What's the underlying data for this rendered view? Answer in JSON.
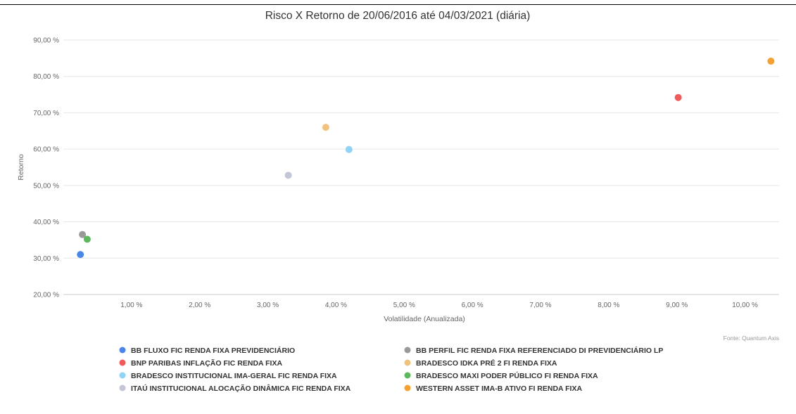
{
  "chart_data": {
    "type": "scatter",
    "title": "Risco X Retorno de 20/06/2016 até 04/03/2021 (diária)",
    "xlabel": "Volatilidade (Anualizada)",
    "ylabel": "Retorno",
    "xlim": [
      0.0,
      10.5
    ],
    "ylim": [
      20,
      90
    ],
    "x_ticks": [
      1,
      2,
      3,
      4,
      5,
      6,
      7,
      8,
      9,
      10
    ],
    "x_tick_labels": [
      "1,00 %",
      "2,00 %",
      "3,00 %",
      "4,00 %",
      "5,00 %",
      "6,00 %",
      "7,00 %",
      "8,00 %",
      "9,00 %",
      "10,00 %"
    ],
    "y_ticks": [
      20,
      30,
      40,
      50,
      60,
      70,
      80,
      90
    ],
    "y_tick_labels": [
      "20,00 %",
      "30,00 %",
      "40,00 %",
      "50,00 %",
      "60,00 %",
      "70,00 %",
      "80,00 %",
      "90,00 %"
    ],
    "grid": "horizontal",
    "legend_position": "bottom",
    "source": "Fonte: Quantum Axis",
    "series": [
      {
        "name": "BB FLUXO FIC RENDA FIXA PREVIDENCIÁRIO",
        "color": "#4a86e8",
        "x": 0.25,
        "y": 31.0
      },
      {
        "name": "BB PERFIL FIC RENDA FIXA REFERENCIADO DI PREVIDENCIÁRIO LP",
        "color": "#999999",
        "x": 0.28,
        "y": 36.5
      },
      {
        "name": "BNP PARIBAS INFLAÇÃO FIC RENDA FIXA",
        "color": "#f05a5a",
        "x": 9.02,
        "y": 74.2
      },
      {
        "name": "BRADESCO IDKA PRÉ 2 FI RENDA FIXA",
        "color": "#f1c27d",
        "x": 3.85,
        "y": 66.0
      },
      {
        "name": "BRADESCO INSTITUCIONAL IMA-GERAL FIC RENDA FIXA",
        "color": "#8fd3f5",
        "x": 4.19,
        "y": 59.9
      },
      {
        "name": "BRADESCO MAXI PODER PÚBLICO FI RENDA FIXA",
        "color": "#5cb85c",
        "x": 0.35,
        "y": 35.2
      },
      {
        "name": "ITAÚ INSTITUCIONAL ALOCAÇÃO DINÂMICA FIC RENDA FIXA",
        "color": "#c3c6d6",
        "x": 3.3,
        "y": 52.8
      },
      {
        "name": "WESTERN ASSET IMA-B ATIVO FI RENDA FIXA",
        "color": "#f5a02f",
        "x": 10.38,
        "y": 84.2
      }
    ]
  }
}
